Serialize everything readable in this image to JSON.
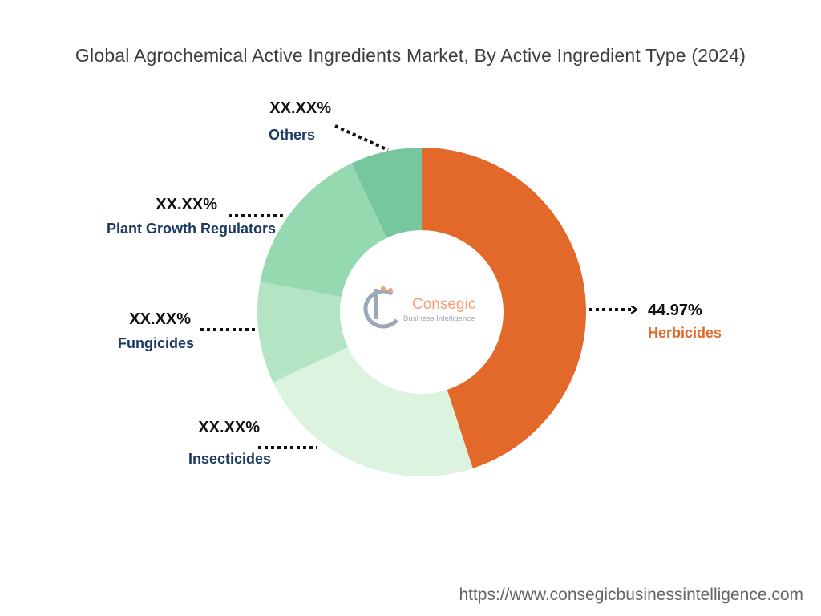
{
  "title": "Global Agrochemical Active Ingredients Market, By Active Ingredient Type (2024)",
  "source_url": "https://www.consegicbusinessintelligence.com",
  "logo": {
    "name": "Consegic",
    "tagline": "Business Intelligence",
    "mark": "bc",
    "icon": "consegic-logo-icon"
  },
  "colors": {
    "label_text": "#1b3a63",
    "highlight_text": "#e3692a",
    "percent_text": "#111111"
  },
  "chart_data": {
    "type": "pie",
    "variant": "donut",
    "title": "Global Agrochemical Active Ingredients Market, By Active Ingredient Type (2024)",
    "slices": [
      {
        "label": "Herbicides",
        "value": 44.97,
        "display": "44.97%",
        "color": "#e3692a",
        "highlight": true
      },
      {
        "label": "Insecticides",
        "value": 23.0,
        "display": "XX.XX%",
        "color": "#dcf3df"
      },
      {
        "label": "Fungicides",
        "value": 10.0,
        "display": "XX.XX%",
        "color": "#b3e4c3"
      },
      {
        "label": "Plant Growth Regulators",
        "value": 15.0,
        "display": "XX.XX%",
        "color": "#95d9b0"
      },
      {
        "label": "Others",
        "value": 7.03,
        "display": "XX.XX%",
        "color": "#76c79e"
      }
    ]
  }
}
